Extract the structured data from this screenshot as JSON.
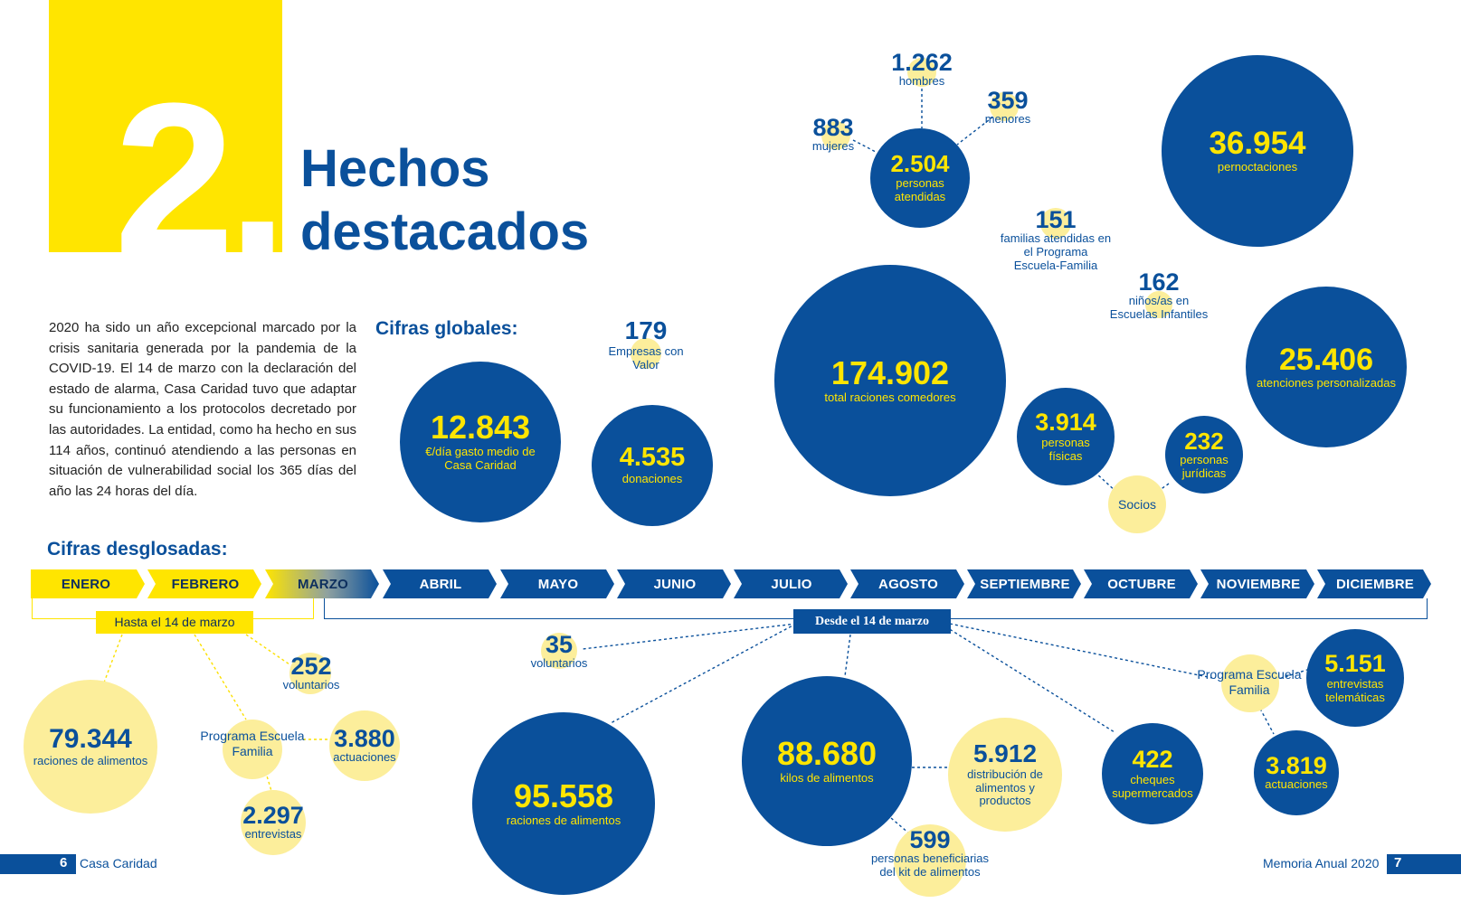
{
  "header": {
    "chapter_number": "2.",
    "title_line1": "Hechos",
    "title_line2": "destacados"
  },
  "intro_text": "2020 ha sido un año excepcional marcado por la crisis sanitaria generada por la pandemia de la COVID-19. El 14 de marzo con la declaración del estado de alarma, Casa Caridad tuvo que adaptar su funcionamiento a los protocolos decretado por las autoridades. La entidad, como ha hecho en sus 114 años, continuó atendiendo a las personas en situación de vulnerabilidad social los 365 días del año las 24 horas del día.",
  "global": {
    "heading": "Cifras globales:",
    "gasto": {
      "value": "12.843",
      "label": "€/día gasto medio de Casa Caridad"
    },
    "empresas": {
      "value": "179",
      "label": "Empresas con Valor"
    },
    "donaciones": {
      "value": "4.535",
      "label": "donaciones"
    },
    "raciones": {
      "value": "174.902",
      "label": "total raciones comedores"
    },
    "hombres": {
      "value": "1.262",
      "label": "hombres"
    },
    "menores": {
      "value": "359",
      "label": "menores"
    },
    "mujeres": {
      "value": "883",
      "label": "mujeres"
    },
    "atendidas": {
      "value": "2.504",
      "label": "personas atendidas"
    },
    "pernoctaciones": {
      "value": "36.954",
      "label": "pernoctaciones"
    },
    "familias": {
      "value": "151",
      "label": "familias atendidas en el Programa Escuela-Familia"
    },
    "ninos": {
      "value": "162",
      "label": "niños/as en Escuelas Infantiles"
    },
    "atenciones": {
      "value": "25.406",
      "label": "atenciones personalizadas"
    },
    "fisicas": {
      "value": "3.914",
      "label": "personas físicas"
    },
    "juridicas": {
      "value": "232",
      "label": "personas jurídicas"
    },
    "socios": {
      "label": "Socios"
    }
  },
  "breakdown": {
    "heading": "Cifras desglosadas:",
    "months": [
      "ENERO",
      "FEBRERO",
      "MARZO",
      "ABRIL",
      "MAYO",
      "JUNIO",
      "JULIO",
      "AGOSTO",
      "SEPTIEMBRE",
      "OCTUBRE",
      "NOVIEMBRE",
      "DICIEMBRE"
    ],
    "before_label": "Hasta el 14 de marzo",
    "after_label": "Desde el 14 de marzo",
    "before": {
      "raciones": {
        "value": "79.344",
        "label": "raciones de alimentos"
      },
      "voluntarios": {
        "value": "252",
        "label": "voluntarios"
      },
      "programa": {
        "label": "Programa Escuela Familia"
      },
      "actuaciones": {
        "value": "3.880",
        "label": "actuaciones"
      },
      "entrevistas": {
        "value": "2.297",
        "label": "entrevistas"
      }
    },
    "after": {
      "voluntarios": {
        "value": "35",
        "label": "voluntarios"
      },
      "raciones": {
        "value": "95.558",
        "label": "raciones de alimentos"
      },
      "kilos": {
        "value": "88.680",
        "label": "kilos de alimentos"
      },
      "distribucion": {
        "value": "5.912",
        "label": "distribución de alimentos y productos"
      },
      "kit": {
        "value": "599",
        "label": "personas beneficiarias del kit de alimentos"
      },
      "cheques": {
        "value": "422",
        "label": "cheques supermercados"
      },
      "programa": {
        "label": "Programa Escuela Familia"
      },
      "entrevistas": {
        "value": "5.151",
        "label": "entrevistas telemáticas"
      },
      "actuaciones": {
        "value": "3.819",
        "label": "actuaciones"
      }
    }
  },
  "footer": {
    "left_page": "6",
    "left_text": "Casa Caridad",
    "right_text": "Memoria Anual 2020",
    "right_page": "7"
  },
  "colors": {
    "blue": "#0a509b",
    "yellow": "#ffe500",
    "pale_yellow": "#fcee9b"
  }
}
